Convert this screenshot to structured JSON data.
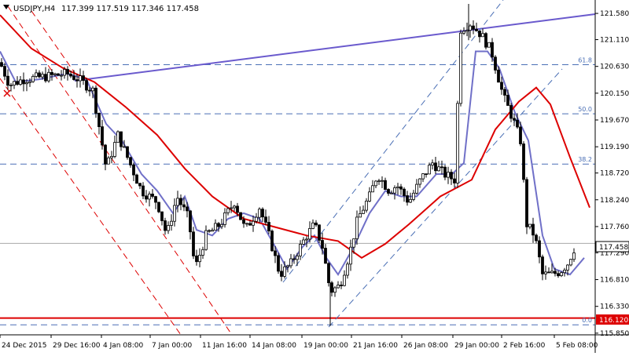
{
  "header": {
    "symbol": "USDJPY,H4",
    "ohlc": "117.399 117.519 117.346 117.458"
  },
  "colors": {
    "background": "#ffffff",
    "candle": "#000000",
    "ma_fast": "#7070c8",
    "ma_slow": "#dd0000",
    "trendline": "#6a5acd",
    "fib": "#4a6fb5",
    "channel_down": "#dd0000",
    "channel_up": "#4a6fb5",
    "support": "#dd0000",
    "price_tag_bg": "#ffffff",
    "support_tag_bg": "#dd0000"
  },
  "chart_data": {
    "type": "candlestick",
    "title": "USDJPY,H4",
    "ylim": [
      115.82,
      121.82
    ],
    "y_ticks": [
      "121.580",
      "121.110",
      "120.630",
      "120.150",
      "119.670",
      "119.190",
      "118.720",
      "118.240",
      "117.760",
      "117.290",
      "116.810",
      "116.330",
      "115.850"
    ],
    "x_ticks": [
      "24 Dec 2015",
      "29 Dec 16:00",
      "4 Jan 08:00",
      "7 Jan 00:00",
      "11 Jan 16:00",
      "14 Jan 08:00",
      "19 Jan 00:00",
      "21 Jan 16:00",
      "26 Jan 08:00",
      "29 Jan 00:00",
      "2 Feb 16:00",
      "5 Feb 08:00"
    ],
    "grid": false,
    "price_label": "117.458",
    "support_label": "116.120",
    "fib_levels": [
      {
        "label": "61.8",
        "value": 120.66
      },
      {
        "label": "50.0",
        "value": 119.78
      },
      {
        "label": "38.2",
        "value": 118.88
      },
      {
        "label": "0.0",
        "value": 116.0
      }
    ],
    "support_level": 116.12,
    "last_price": 117.458,
    "close_path": [
      {
        "t": 0,
        "v": 120.7
      },
      {
        "t": 12,
        "v": 120.3
      },
      {
        "t": 30,
        "v": 120.4
      },
      {
        "t": 60,
        "v": 120.45
      },
      {
        "t": 85,
        "v": 120.5
      },
      {
        "t": 100,
        "v": 120.4
      },
      {
        "t": 118,
        "v": 120.2
      },
      {
        "t": 128,
        "v": 119.4
      },
      {
        "t": 135,
        "v": 118.8
      },
      {
        "t": 150,
        "v": 119.4
      },
      {
        "t": 165,
        "v": 118.9
      },
      {
        "t": 180,
        "v": 118.4
      },
      {
        "t": 200,
        "v": 118.2
      },
      {
        "t": 212,
        "v": 117.6
      },
      {
        "t": 225,
        "v": 118.3
      },
      {
        "t": 240,
        "v": 117.9
      },
      {
        "t": 248,
        "v": 117.0
      },
      {
        "t": 262,
        "v": 117.6
      },
      {
        "t": 280,
        "v": 117.8
      },
      {
        "t": 298,
        "v": 118.2
      },
      {
        "t": 312,
        "v": 117.7
      },
      {
        "t": 330,
        "v": 118.1
      },
      {
        "t": 342,
        "v": 117.6
      },
      {
        "t": 356,
        "v": 116.9
      },
      {
        "t": 370,
        "v": 117.1
      },
      {
        "t": 390,
        "v": 117.6
      },
      {
        "t": 400,
        "v": 117.8
      },
      {
        "t": 410,
        "v": 117.4
      },
      {
        "t": 420,
        "v": 116.6
      },
      {
        "t": 432,
        "v": 116.7
      },
      {
        "t": 445,
        "v": 117.3
      },
      {
        "t": 455,
        "v": 117.9
      },
      {
        "t": 470,
        "v": 118.3
      },
      {
        "t": 480,
        "v": 118.7
      },
      {
        "t": 495,
        "v": 118.4
      },
      {
        "t": 505,
        "v": 118.5
      },
      {
        "t": 520,
        "v": 118.2
      },
      {
        "t": 535,
        "v": 118.6
      },
      {
        "t": 550,
        "v": 118.9
      },
      {
        "t": 565,
        "v": 118.7
      },
      {
        "t": 578,
        "v": 118.6
      },
      {
        "t": 586,
        "v": 121.3
      },
      {
        "t": 598,
        "v": 121.4
      },
      {
        "t": 612,
        "v": 121.2
      },
      {
        "t": 625,
        "v": 120.9
      },
      {
        "t": 640,
        "v": 120.1
      },
      {
        "t": 652,
        "v": 119.7
      },
      {
        "t": 662,
        "v": 119.3
      },
      {
        "t": 670,
        "v": 117.8
      },
      {
        "t": 680,
        "v": 117.6
      },
      {
        "t": 690,
        "v": 116.9
      },
      {
        "t": 700,
        "v": 116.9
      },
      {
        "t": 712,
        "v": 116.95
      },
      {
        "t": 722,
        "v": 117.1
      },
      {
        "t": 733,
        "v": 117.46
      }
    ],
    "series": [
      {
        "name": "",
        "kind": "ma_fast",
        "values": [
          {
            "t": 0,
            "v": 120.9
          },
          {
            "t": 20,
            "v": 120.35
          },
          {
            "t": 50,
            "v": 120.4
          },
          {
            "t": 85,
            "v": 120.5
          },
          {
            "t": 110,
            "v": 120.4
          },
          {
            "t": 135,
            "v": 119.6
          },
          {
            "t": 155,
            "v": 119.3
          },
          {
            "t": 180,
            "v": 118.7
          },
          {
            "t": 200,
            "v": 118.4
          },
          {
            "t": 220,
            "v": 118.0
          },
          {
            "t": 235,
            "v": 118.3
          },
          {
            "t": 250,
            "v": 117.7
          },
          {
            "t": 270,
            "v": 117.6
          },
          {
            "t": 290,
            "v": 117.9
          },
          {
            "t": 310,
            "v": 118.0
          },
          {
            "t": 330,
            "v": 117.9
          },
          {
            "t": 350,
            "v": 117.4
          },
          {
            "t": 365,
            "v": 117.0
          },
          {
            "t": 385,
            "v": 117.4
          },
          {
            "t": 400,
            "v": 117.6
          },
          {
            "t": 415,
            "v": 117.2
          },
          {
            "t": 430,
            "v": 116.9
          },
          {
            "t": 450,
            "v": 117.4
          },
          {
            "t": 470,
            "v": 118.0
          },
          {
            "t": 490,
            "v": 118.4
          },
          {
            "t": 510,
            "v": 118.3
          },
          {
            "t": 530,
            "v": 118.3
          },
          {
            "t": 555,
            "v": 118.7
          },
          {
            "t": 575,
            "v": 118.7
          },
          {
            "t": 590,
            "v": 118.9
          },
          {
            "t": 605,
            "v": 120.9
          },
          {
            "t": 620,
            "v": 120.9
          },
          {
            "t": 635,
            "v": 120.6
          },
          {
            "t": 655,
            "v": 119.8
          },
          {
            "t": 672,
            "v": 119.3
          },
          {
            "t": 690,
            "v": 117.6
          },
          {
            "t": 705,
            "v": 117.0
          },
          {
            "t": 725,
            "v": 116.9
          },
          {
            "t": 743,
            "v": 117.2
          }
        ]
      },
      {
        "name": "",
        "kind": "ma_slow",
        "values": [
          {
            "t": 0,
            "v": 121.55
          },
          {
            "t": 40,
            "v": 120.95
          },
          {
            "t": 80,
            "v": 120.6
          },
          {
            "t": 120,
            "v": 120.35
          },
          {
            "t": 160,
            "v": 119.9
          },
          {
            "t": 200,
            "v": 119.4
          },
          {
            "t": 235,
            "v": 118.8
          },
          {
            "t": 270,
            "v": 118.3
          },
          {
            "t": 310,
            "v": 117.9
          },
          {
            "t": 350,
            "v": 117.75
          },
          {
            "t": 390,
            "v": 117.6
          },
          {
            "t": 430,
            "v": 117.5
          },
          {
            "t": 460,
            "v": 117.2
          },
          {
            "t": 490,
            "v": 117.45
          },
          {
            "t": 520,
            "v": 117.8
          },
          {
            "t": 560,
            "v": 118.3
          },
          {
            "t": 600,
            "v": 118.6
          },
          {
            "t": 630,
            "v": 119.5
          },
          {
            "t": 660,
            "v": 120.0
          },
          {
            "t": 682,
            "v": 120.25
          },
          {
            "t": 700,
            "v": 119.95
          },
          {
            "t": 725,
            "v": 119.0
          },
          {
            "t": 750,
            "v": 118.1
          }
        ]
      }
    ]
  }
}
